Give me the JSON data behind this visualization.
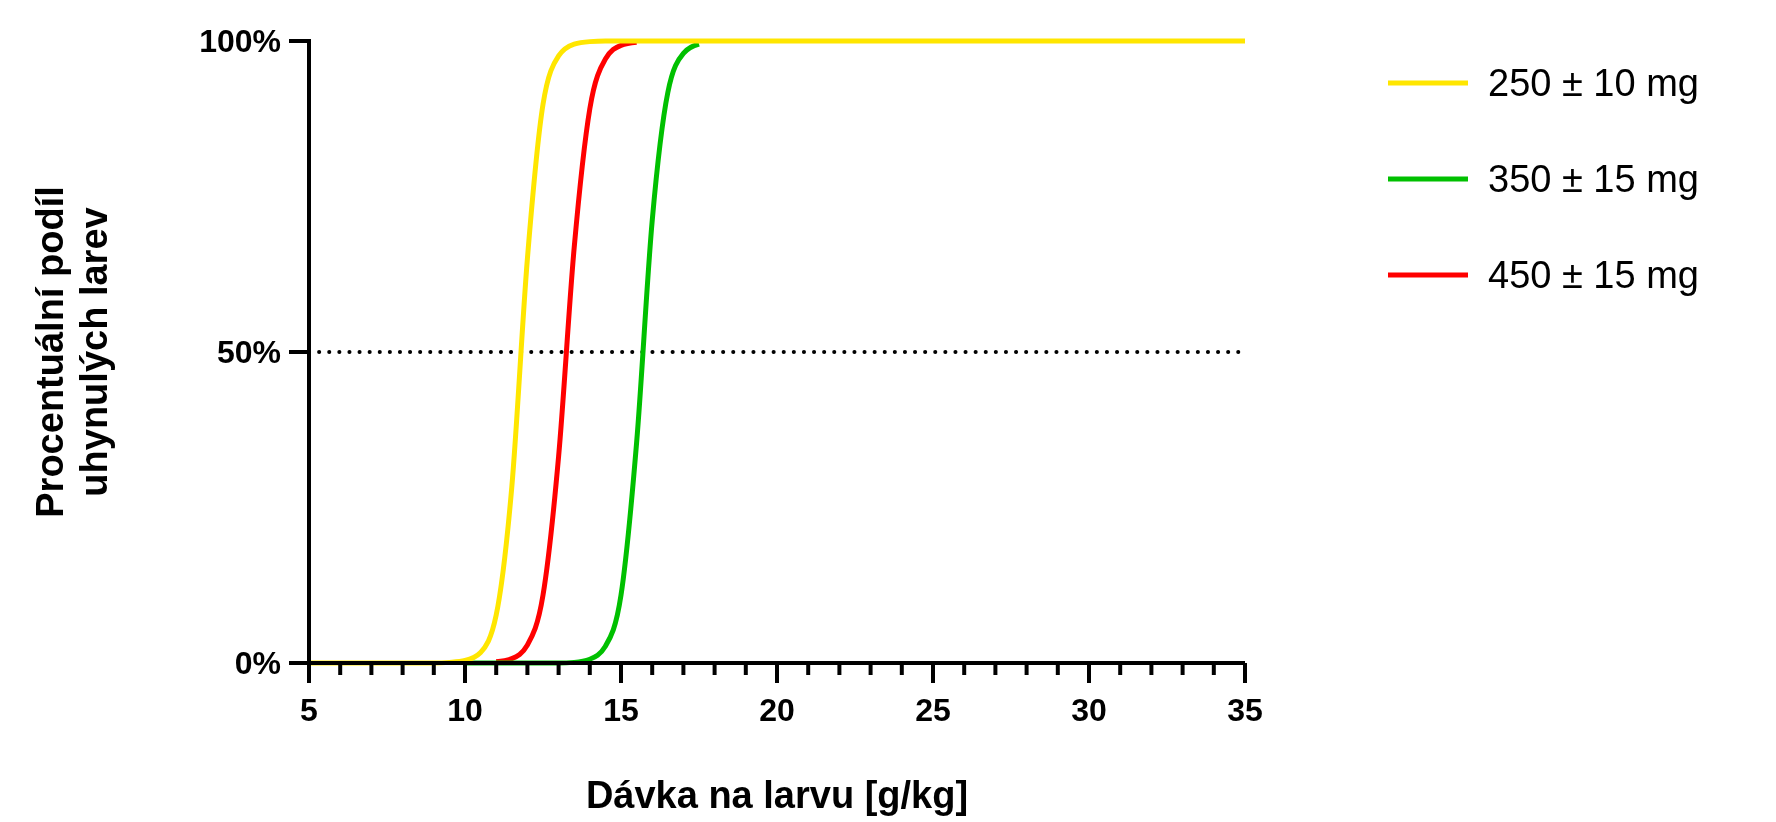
{
  "chart_data": {
    "type": "line",
    "xlabel": "Dávka na larvu [g/kg]",
    "ylabel": "Procentuální podíl uhynulých larev",
    "x": [
      5,
      8,
      9,
      9.5,
      10,
      10.5,
      11,
      11.5,
      12,
      12.5,
      13,
      13.5,
      14,
      14.5,
      15,
      15.5,
      16,
      16.5,
      17,
      17.5,
      18,
      19,
      20,
      25,
      35
    ],
    "series": [
      {
        "name": "250 ± 10 mg",
        "color": "#ffe600",
        "values": [
          0,
          0,
          0,
          0.1,
          0.4,
          1.7,
          7.7,
          28.3,
          65.0,
          89.8,
          97.6,
          99.5,
          99.9,
          100,
          100,
          100,
          100,
          100,
          100,
          100,
          100,
          100,
          100,
          100,
          100
        ]
      },
      {
        "name": "350 ± 15 mg",
        "color": "#00c000",
        "values": [
          null,
          null,
          null,
          null,
          0,
          0,
          0,
          0,
          0,
          0,
          0,
          0.1,
          0.6,
          2.7,
          10.9,
          35.4,
          71.1,
          91.7,
          98.0,
          99.5,
          null,
          null,
          null,
          null,
          null
        ]
      },
      {
        "name": "450 ± 15 mg",
        "color": "#ff0000",
        "values": [
          null,
          null,
          null,
          null,
          null,
          null,
          0.2,
          0.7,
          2.9,
          10.9,
          33.2,
          66.8,
          89.1,
          97.1,
          99.3,
          99.8,
          null,
          null,
          null,
          null,
          null,
          null,
          null,
          null,
          null
        ]
      }
    ],
    "xlim": [
      5,
      35
    ],
    "xticks": [
      5,
      {
        "value": 6,
        "label": null
      },
      {
        "value": 7,
        "label": null
      },
      {
        "value": 8,
        "label": null
      },
      {
        "value": 9,
        "label": null
      },
      10,
      {
        "value": 11,
        "label": null
      },
      {
        "value": 12,
        "label": null
      },
      {
        "value": 13,
        "label": null
      },
      {
        "value": 14,
        "label": null
      },
      15,
      {
        "value": 16,
        "label": null
      },
      {
        "value": 17,
        "label": null
      },
      {
        "value": 18,
        "label": null
      },
      {
        "value": 19,
        "label": null
      },
      20,
      {
        "value": 21,
        "label": null
      },
      {
        "value": 22,
        "label": null
      },
      {
        "value": 23,
        "label": null
      },
      {
        "value": 24,
        "label": null
      },
      25,
      {
        "value": 26,
        "label": null
      },
      {
        "value": 27,
        "label": null
      },
      {
        "value": 28,
        "label": null
      },
      {
        "value": 29,
        "label": null
      },
      30,
      {
        "value": 31,
        "label": null
      },
      {
        "value": 32,
        "label": null
      },
      {
        "value": 33,
        "label": null
      },
      {
        "value": 34,
        "label": null
      },
      35
    ],
    "ylim": [
      0,
      100
    ],
    "yticks": [
      {
        "value": 0,
        "label": "0%"
      },
      {
        "value": 50,
        "label": "50%"
      },
      {
        "value": 100,
        "label": "100%"
      }
    ],
    "ref_lines": [
      {
        "axis": "y",
        "value": 50,
        "color": "#000000",
        "line_style": "dotted"
      }
    ],
    "grid": false,
    "legend": "top right",
    "marker": "none",
    "line_style": "solid"
  }
}
